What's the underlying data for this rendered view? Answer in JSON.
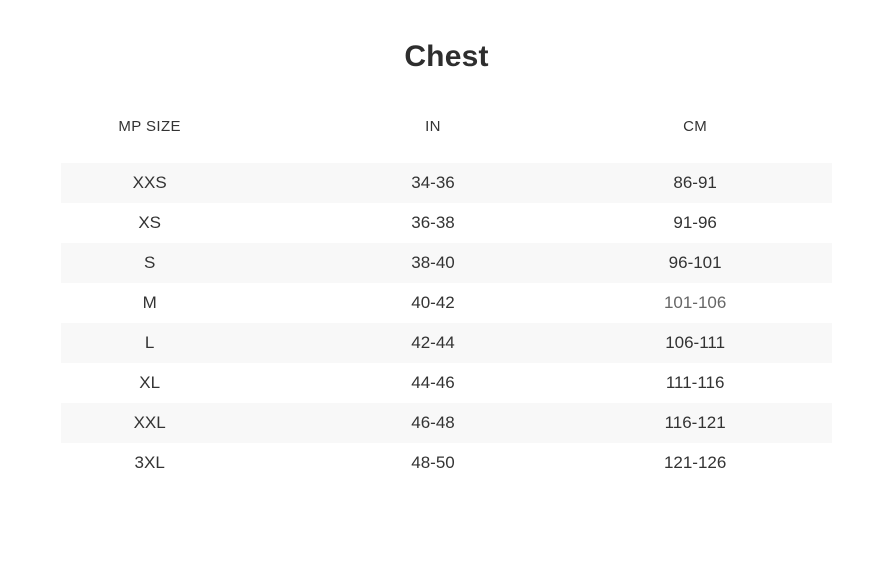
{
  "title": "Chest",
  "table": {
    "columns": [
      "MP SIZE",
      "IN",
      "CM"
    ],
    "rows": [
      {
        "size": "XXS",
        "in": "34-36",
        "cm": "86-91"
      },
      {
        "size": "XS",
        "in": "36-38",
        "cm": "91-96"
      },
      {
        "size": "S",
        "in": "38-40",
        "cm": "96-101"
      },
      {
        "size": "M",
        "in": "40-42",
        "cm": "101-106"
      },
      {
        "size": "L",
        "in": "42-44",
        "cm": "106-111"
      },
      {
        "size": "XL",
        "in": "44-46",
        "cm": "111-116"
      },
      {
        "size": "XXL",
        "in": "46-48",
        "cm": "116-121"
      },
      {
        "size": "3XL",
        "in": "48-50",
        "cm": "121-126"
      }
    ]
  },
  "colors": {
    "title": "#2e2e2e",
    "text": "#333333",
    "muted_text": "#666666",
    "stripe": "#f8f8f8"
  }
}
